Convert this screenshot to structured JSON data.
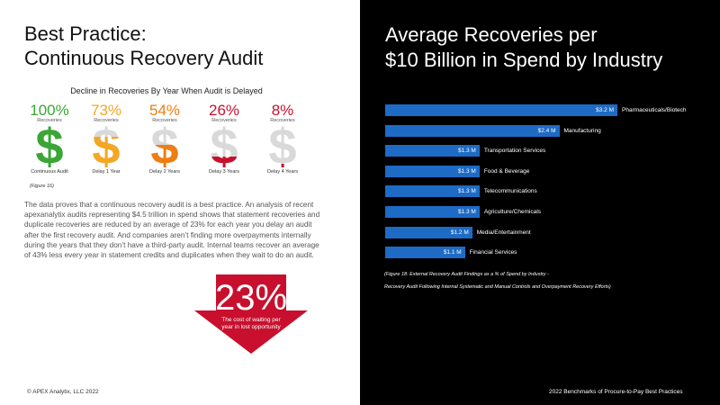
{
  "left": {
    "title_line1": "Best Practice:",
    "title_line2": "Continuous Recovery Audit",
    "delay_chart_title": "Decline in Recoveries By Year When Audit is Delayed",
    "figure_note": "(Figure 16)",
    "body": "The data proves that a continuous recovery audit is a best practice. An analysis of recent apexanalytix audits representing $4.5 trillion in spend shows that statement recoveries and duplicate recoveries are reduced by an average of 23% for each year you delay an audit after the first recovery audit. And companies aren’t finding more overpayments internally during the years that they don’t have a third-party audit. Internal teams recover an average of 43% less every year in statement credits and duplicates when they wait to do an audit.",
    "callout_value": "23%",
    "callout_caption": "The cost of waiting per year in lost opportunity",
    "footer": "© APEX Analytix, LLC 2022",
    "callout_color": "#c8102e"
  },
  "right": {
    "title_line1": "Average Recoveries per",
    "title_line2": "$10 Billion in Spend by Industry",
    "figure_note_line1": "(Figure 18: External Recovery Audit Findings as a % of Spend by Industry -",
    "figure_note_line2": "Recovery Audit Following Internal Systematic and Manual Controls and Overpayment Recovery Efforts)",
    "footer": "2022 Benchmarks of Procure-to-Pay Best Practices",
    "bar_color": "#1e6bc6"
  },
  "chart_data": [
    {
      "type": "bar",
      "title": "Decline in Recoveries By Year When Audit is Delayed",
      "categories": [
        "Continuous Audit",
        "Delay 1 Year",
        "Delay 2 Years",
        "Delay 3 Years",
        "Delay 4 Years"
      ],
      "values": [
        100,
        73,
        54,
        26,
        8
      ],
      "value_labels": [
        "100%",
        "73%",
        "54%",
        "26%",
        "8%"
      ],
      "sub_label": "Recoveries",
      "colors": [
        "#3aa635",
        "#f5a623",
        "#ee7d12",
        "#c8102e",
        "#c8102e"
      ],
      "unit": "%"
    },
    {
      "type": "bar",
      "title": "Average Recoveries per $10 Billion in Spend by Industry",
      "orientation": "horizontal",
      "categories": [
        "Pharmaceuticals/Biotech",
        "Manufacturing",
        "Transportation Services",
        "Food & Beverage",
        "Telecommunications",
        "Agriculture/Chemicals",
        "Media/Entertainment",
        "Financial Services"
      ],
      "values": [
        3.2,
        2.4,
        1.3,
        1.3,
        1.3,
        1.3,
        1.2,
        1.1
      ],
      "value_labels": [
        "$3.2 M",
        "$2.4 M",
        "$1.3 M",
        "$1.3 M",
        "$1.3 M",
        "$1.3 M",
        "$1.2 M",
        "$1.1 M"
      ],
      "unit": "$M"
    }
  ]
}
